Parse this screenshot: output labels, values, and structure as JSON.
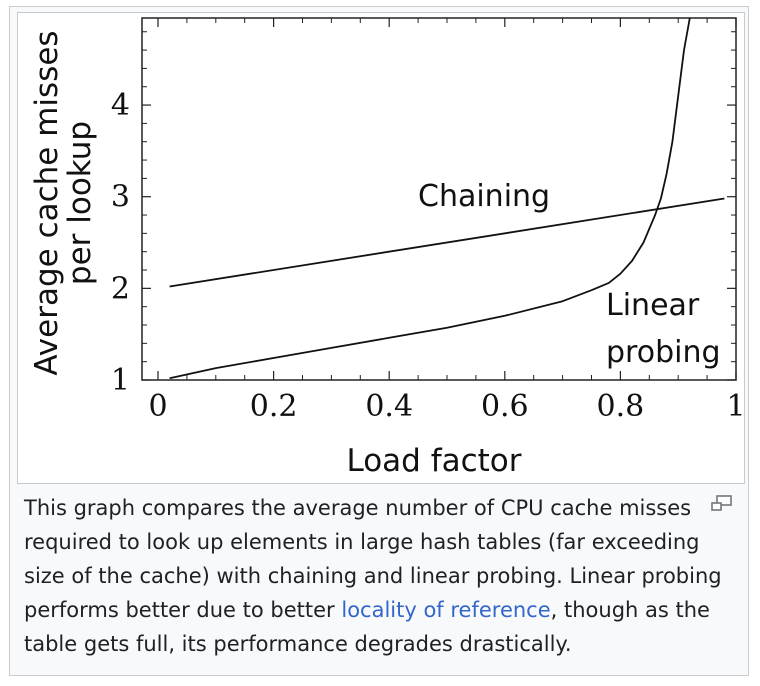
{
  "chart_data": {
    "type": "line",
    "xlabel": "Load factor",
    "ylabel": "Average cache misses per lookup",
    "ylabel_lines": [
      "Average cache misses",
      "per lookup"
    ],
    "xlim": [
      0,
      1
    ],
    "ylim": [
      1,
      4.95
    ],
    "x_ticks": [
      0,
      0.2,
      0.4,
      0.6,
      0.8,
      1
    ],
    "x_tick_labels": [
      "0",
      "0.2",
      "0.4",
      "0.6",
      "0.8",
      "1"
    ],
    "y_ticks": [
      1,
      2,
      3,
      4
    ],
    "y_tick_labels": [
      "1",
      "2",
      "3",
      "4"
    ],
    "grid": false,
    "series": [
      {
        "name": "Chaining",
        "x": [
          0.02,
          0.98
        ],
        "y": [
          2.02,
          2.98
        ]
      },
      {
        "name": "Linear probing",
        "x": [
          0.02,
          0.1,
          0.2,
          0.3,
          0.4,
          0.5,
          0.6,
          0.7,
          0.75,
          0.78,
          0.8,
          0.82,
          0.84,
          0.86,
          0.87,
          0.88,
          0.89,
          0.9,
          0.91,
          0.92
        ],
        "y": [
          1.02,
          1.13,
          1.24,
          1.35,
          1.46,
          1.57,
          1.7,
          1.86,
          1.98,
          2.06,
          2.16,
          2.3,
          2.5,
          2.8,
          2.98,
          3.25,
          3.6,
          4.1,
          4.6,
          4.95
        ]
      }
    ]
  },
  "caption": {
    "text_before_link": "This graph compares the average number of CPU cache misses required to look up elements in large hash tables (far exceeding size of the cache) with chaining and linear probing. Linear probing performs better due to better ",
    "link_text": "locality of reference",
    "text_after_link": ", though as the table gets full, its performance degrades drastically."
  },
  "icons": {
    "enlarge": "enlarge-icon"
  }
}
